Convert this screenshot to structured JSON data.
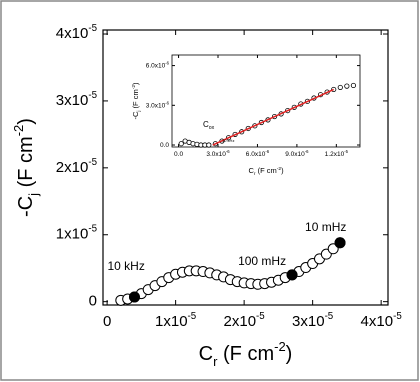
{
  "chart_data": [
    {
      "type": "scatter",
      "x_label": [
        [
          "C",
          "normal"
        ],
        [
          "r",
          "sub"
        ],
        [
          " (F cm",
          "normal"
        ],
        [
          "-2",
          "sup"
        ],
        [
          ")",
          "normal"
        ]
      ],
      "y_label": [
        [
          "-C",
          "normal"
        ],
        [
          "j",
          "sub"
        ],
        [
          " (F cm",
          "normal"
        ],
        [
          "-2",
          "sup"
        ],
        [
          ")",
          "normal"
        ]
      ],
      "xlim": [
        -6e-07,
        4.1e-05
      ],
      "ylim": [
        -5e-07,
        4.06e-05
      ],
      "xticks": [
        0,
        {
          "value": 1e-05,
          "label": [
            [
              "1x10",
              "normal"
            ],
            [
              "-5",
              "sup"
            ]
          ]
        },
        {
          "value": 2e-05,
          "label": [
            [
              "2x10",
              "normal"
            ],
            [
              "-5",
              "sup"
            ]
          ]
        },
        {
          "value": 3e-05,
          "label": [
            [
              "3x10",
              "normal"
            ],
            [
              "-5",
              "sup"
            ]
          ]
        },
        {
          "value": 4e-05,
          "label": [
            [
              "4x10",
              "normal"
            ],
            [
              "-5",
              "sup"
            ]
          ]
        }
      ],
      "yticks": [
        0,
        {
          "value": 1e-05,
          "label": [
            [
              "1x10",
              "normal"
            ],
            [
              "-5",
              "sup"
            ]
          ]
        },
        {
          "value": 2e-05,
          "label": [
            [
              "2x10",
              "normal"
            ],
            [
              "-5",
              "sup"
            ]
          ]
        },
        {
          "value": 3e-05,
          "label": [
            [
              "3x10",
              "normal"
            ],
            [
              "-5",
              "sup"
            ]
          ]
        },
        {
          "value": 4e-05,
          "label": [
            [
              "4x10",
              "normal"
            ],
            [
              "-5",
              "sup"
            ]
          ]
        }
      ],
      "series": [
        {
          "style": "circle-open",
          "color": "#000000",
          "x": [
            2e-06,
            3e-06,
            4e-06,
            5e-06,
            6e-06,
            7e-06,
            8e-06,
            9e-06,
            1e-05,
            1.1e-05,
            1.2e-05,
            1.3e-05,
            1.4e-05,
            1.5e-05,
            1.6e-05,
            1.7e-05,
            1.8e-05,
            1.9e-05,
            2e-05,
            2.1e-05,
            2.2e-05,
            2.3e-05,
            2.4e-05,
            2.5e-05,
            2.6e-05,
            2.7e-05,
            2.8e-05,
            2.9e-05,
            3e-05,
            3.1e-05,
            3.2e-05,
            3.3e-05,
            3.4e-05
          ],
          "y": [
            2e-07,
            4e-07,
            7e-07,
            1.2e-06,
            1.8e-06,
            2.4e-06,
            3e-06,
            3.6e-06,
            4.1e-06,
            4.4e-06,
            4.6e-06,
            4.6e-06,
            4.5e-06,
            4.3e-06,
            4e-06,
            3.7e-06,
            3.3e-06,
            3e-06,
            2.8e-06,
            2.7e-06,
            2.6e-06,
            2.7e-06,
            2.9e-06,
            3.2e-06,
            3.6e-06,
            4e-06,
            4.5e-06,
            5.1e-06,
            5.7e-06,
            6.4e-06,
            7.1e-06,
            7.9e-06,
            8.8e-06
          ]
        }
      ],
      "annotations": [
        {
          "text": "10 kHz",
          "x": 4e-06,
          "y": 7e-07
        },
        {
          "text": "100 mHz",
          "x": 2.7e-05,
          "y": 4e-06
        },
        {
          "text": "10 mHz",
          "x": 3.4e-05,
          "y": 8.8e-06
        }
      ]
    },
    {
      "type": "scatter",
      "x_label": [
        [
          "C",
          "normal"
        ],
        [
          "r",
          "sub"
        ],
        [
          " (F cm",
          "normal"
        ],
        [
          "-2",
          "sup"
        ],
        [
          ")",
          "normal"
        ]
      ],
      "y_label": [
        [
          "-C",
          "normal"
        ],
        [
          "j",
          "sub"
        ],
        [
          " (F cm",
          "normal"
        ],
        [
          "-2",
          "sup"
        ],
        [
          ")",
          "normal"
        ]
      ],
      "xlim": [
        -5e-07,
        1.38e-05
      ],
      "ylim": [
        -1.5e-07,
        6.8e-06
      ],
      "xticks": [
        {
          "value": 0,
          "label": [
            [
              "0.0",
              "normal"
            ]
          ]
        },
        {
          "value": 3e-06,
          "label": [
            [
              "3.0x10",
              "normal"
            ],
            [
              "-6",
              "sup"
            ]
          ]
        },
        {
          "value": 6e-06,
          "label": [
            [
              "6.0x10",
              "normal"
            ],
            [
              "-6",
              "sup"
            ]
          ]
        },
        {
          "value": 9e-06,
          "label": [
            [
              "9.0x10",
              "normal"
            ],
            [
              "-6",
              "sup"
            ]
          ]
        },
        {
          "value": 1.2e-05,
          "label": [
            [
              "1.2x10",
              "normal"
            ],
            [
              "-5",
              "sup"
            ]
          ]
        }
      ],
      "yticks": [
        {
          "value": 0,
          "label": [
            [
              "0.0",
              "normal"
            ]
          ]
        },
        {
          "value": 3e-06,
          "label": [
            [
              "3.0x10",
              "normal"
            ],
            [
              "-6",
              "sup"
            ]
          ]
        },
        {
          "value": 6e-06,
          "label": [
            [
              "6.0x10",
              "normal"
            ],
            [
              "-6",
              "sup"
            ]
          ]
        }
      ],
      "series": [
        {
          "style": "circle-open",
          "color": "#000000",
          "x": [
            2e-07,
            5e-07,
            8e-07,
            1.1e-06,
            1.4e-06,
            1.7e-06,
            2e-06,
            2.3e-06,
            2.8e-06,
            3.3e-06,
            3.8e-06,
            4.3e-06,
            4.8e-06,
            5.3e-06,
            5.8e-06,
            6.3e-06,
            6.8e-06,
            7.3e-06,
            7.8e-06,
            8.3e-06,
            8.8e-06,
            9.3e-06,
            9.8e-06,
            1.03e-05,
            1.08e-05,
            1.13e-05,
            1.18e-05,
            1.23e-05,
            1.28e-05,
            1.33e-05
          ],
          "y": [
            1e-07,
            3e-07,
            2e-07,
            1e-07,
            5e-08,
            0,
            0,
            0,
            1e-07,
            3e-07,
            5.5e-07,
            8e-07,
            1e-06,
            1.25e-06,
            1.45e-06,
            1.7e-06,
            1.9e-06,
            2.15e-06,
            2.35e-06,
            2.6e-06,
            2.85e-06,
            3.1e-06,
            3.3e-06,
            3.55e-06,
            3.8e-06,
            4e-06,
            4.2e-06,
            4.35e-06,
            4.45e-06,
            4.5e-06
          ]
        },
        {
          "style": "line",
          "color": "#e02020",
          "x": [
            2.6e-06,
            1.18e-05
          ],
          "y": [
            0,
            4.2e-06
          ]
        }
      ],
      "marker_label": [
        [
          "C",
          "normal"
        ],
        [
          "ox",
          "sub"
        ]
      ],
      "note": "10 kHz"
    }
  ]
}
